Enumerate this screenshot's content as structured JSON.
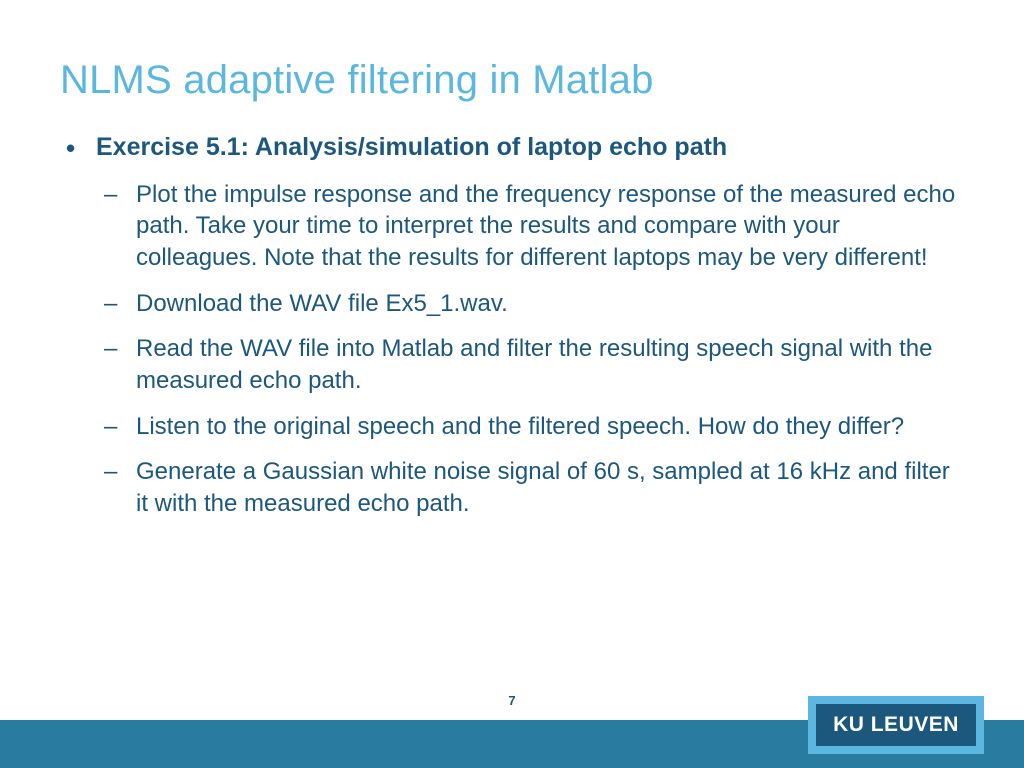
{
  "title": "NLMS adaptive filtering in Matlab",
  "main_bullet": "Exercise 5.1: Analysis/simulation of laptop echo path",
  "sub_items": [
    "Plot the impulse response and the frequency response of the measured echo path. Take your time to interpret the results and compare with your colleagues. Note that the results for different laptops may be very different!",
    "Download the WAV file Ex5_1.wav.",
    "Read the WAV file into Matlab and filter the resulting speech signal with the measured echo path.",
    "Listen to the original speech and the filtered speech. How do they differ?",
    "Generate a Gaussian white noise signal of 60 s, sampled at 16 kHz and filter it with the measured echo path."
  ],
  "page_number": "7",
  "logo_text": "KU LEUVEN",
  "colors": {
    "title": "#5bb7e0",
    "body_text": "#1c577e",
    "footer_bar": "#2a7ba0",
    "logo_outer": "#5bb7e0",
    "logo_inner": "#1c577e",
    "logo_text": "#ffffff",
    "background": "#ffffff"
  }
}
